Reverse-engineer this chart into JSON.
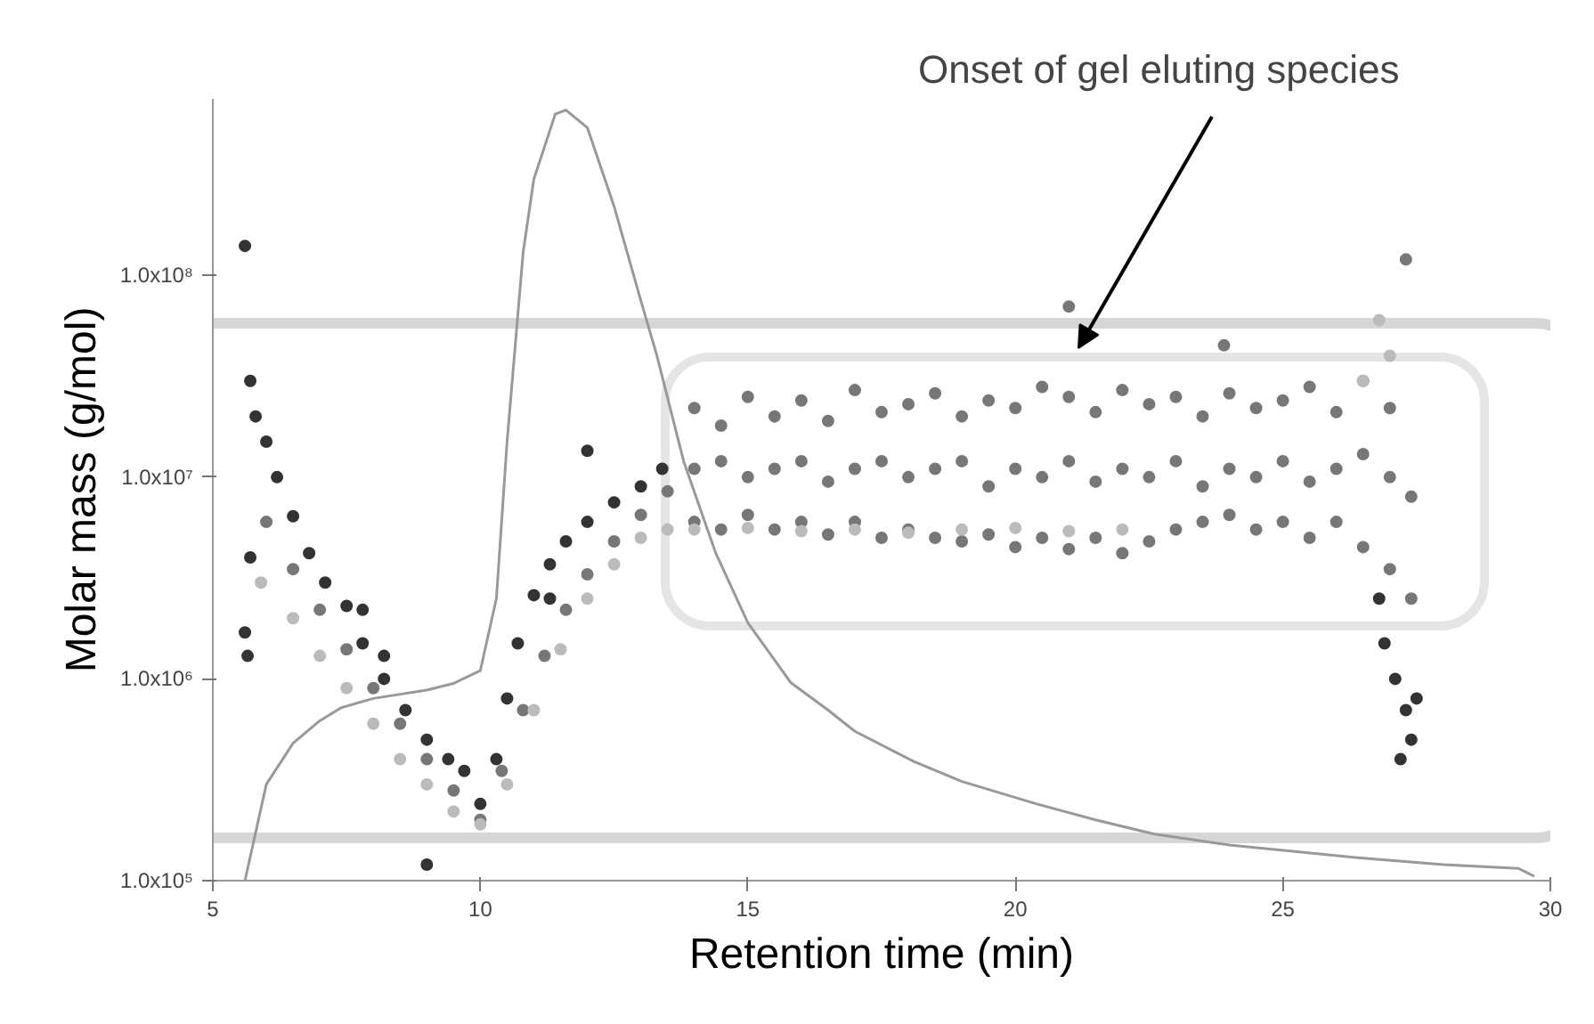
{
  "chart_data": {
    "type": "scatter",
    "xlabel": "Retention time (min)",
    "ylabel": "Molar mass (g/mol)",
    "log": "y",
    "xlim": [
      5,
      30
    ],
    "ylim": [
      100000,
      750000000
    ],
    "xticks": [
      5,
      10,
      15,
      20,
      25,
      30
    ],
    "yticks": [
      {
        "value": 100000,
        "label": "1.0x10⁵"
      },
      {
        "value": 1000000,
        "label": "1.0x10⁶"
      },
      {
        "value": 10000000,
        "label": "1.0x10⁷"
      },
      {
        "value": 100000000,
        "label": "1.0x10⁸"
      }
    ],
    "grid": false,
    "marker": "circle",
    "annotations": [
      "Onset of gel eluting species"
    ],
    "series": [
      {
        "color": "#333333",
        "x": [
          5.6,
          5.7,
          5.8,
          6.0,
          6.2,
          6.5,
          6.8,
          7.1,
          7.5,
          7.8,
          8.2,
          8.6,
          9.0,
          9.4,
          9.7,
          10.0,
          5.7,
          5.6,
          5.65,
          9.0,
          10.3,
          10.5,
          10.7,
          11.0,
          11.3,
          11.6,
          12.0,
          12.5,
          13.0,
          13.4,
          12.0,
          11.3,
          8.2,
          7.8,
          26.9,
          27.1,
          27.3,
          27.4,
          27.2,
          27.5,
          26.8
        ],
        "values": [
          140000000,
          30000000,
          20000000,
          15000000,
          10000000,
          6400000,
          4200000,
          3000000,
          2300000,
          1500000,
          1000000,
          700000,
          500000,
          400000,
          350000,
          240000,
          4000000,
          1700000,
          1300000,
          120000,
          400000,
          800000,
          1500000,
          2600000,
          3700000,
          4800000,
          6000000,
          7500000,
          9000000,
          11000000,
          13500000,
          2500000,
          1300000,
          2200000,
          1500000,
          1000000,
          700000,
          500000,
          400000,
          800000,
          2500000
        ]
      },
      {
        "color": "#777777",
        "x": [
          6.0,
          6.5,
          7.0,
          7.5,
          8.0,
          8.5,
          9.0,
          9.5,
          10.0,
          10.4,
          10.8,
          11.2,
          11.6,
          12.0,
          12.5,
          13.0,
          13.5,
          14.0,
          14.0,
          14.0,
          14.5,
          14.5,
          14.5,
          15.0,
          15.0,
          15.0,
          15.5,
          15.5,
          15.5,
          16.0,
          16.0,
          16.0,
          16.5,
          16.5,
          16.5,
          17.0,
          17.0,
          17.0,
          17.5,
          17.5,
          17.5,
          18.0,
          18.0,
          18.0,
          18.5,
          18.5,
          18.5,
          19.0,
          19.0,
          19.0,
          19.5,
          19.5,
          19.5,
          20.0,
          20.0,
          20.0,
          20.5,
          20.5,
          20.5,
          21.0,
          21.0,
          21.0,
          21.5,
          21.5,
          21.5,
          22.0,
          22.0,
          22.0,
          22.5,
          22.5,
          22.5,
          23.0,
          23.0,
          23.0,
          23.5,
          23.5,
          23.5,
          24.0,
          24.0,
          24.0,
          24.5,
          24.5,
          24.5,
          25.0,
          25.0,
          25.0,
          25.5,
          25.5,
          25.5,
          26.0,
          26.0,
          26.0,
          26.5,
          26.5,
          26.5,
          27.0,
          27.0,
          27.0,
          27.4,
          27.4,
          21.0,
          23.9,
          27.3
        ],
        "values": [
          6000000,
          3500000,
          2200000,
          1400000,
          900000,
          600000,
          400000,
          280000,
          200000,
          350000,
          700000,
          1300000,
          2200000,
          3300000,
          4800000,
          6500000,
          8500000,
          11000000,
          22000000,
          6000000,
          12000000,
          18000000,
          5500000,
          10000000,
          25000000,
          6500000,
          11000000,
          20000000,
          5500000,
          12000000,
          24000000,
          6000000,
          9500000,
          19000000,
          5200000,
          11000000,
          27000000,
          6000000,
          12000000,
          21000000,
          5000000,
          10000000,
          23000000,
          5500000,
          11000000,
          26000000,
          5000000,
          12000000,
          20000000,
          4800000,
          9000000,
          24000000,
          5200000,
          11000000,
          22000000,
          4500000,
          10000000,
          28000000,
          5000000,
          12000000,
          25000000,
          4400000,
          9500000,
          21000000,
          5000000,
          11000000,
          27000000,
          4200000,
          10000000,
          23000000,
          4800000,
          12000000,
          25000000,
          5500000,
          9000000,
          20000000,
          6000000,
          11000000,
          26000000,
          6500000,
          10000000,
          22000000,
          5500000,
          12000000,
          24000000,
          6000000,
          9500000,
          28000000,
          5000000,
          11000000,
          21000000,
          6000000,
          13000000,
          30000000,
          4500000,
          10000000,
          22000000,
          3500000,
          8000000,
          2500000,
          70000000,
          45000000,
          120000000
        ]
      },
      {
        "color": "#bbbbbb",
        "x": [
          5.9,
          6.5,
          7.0,
          7.5,
          8.0,
          8.5,
          9.0,
          9.5,
          10.0,
          10.5,
          11.0,
          11.5,
          12.0,
          12.5,
          13.0,
          13.5,
          14.0,
          15.0,
          16.0,
          17.0,
          18.0,
          19.0,
          20.0,
          21.0,
          22.0,
          26.5,
          27.0,
          26.8
        ],
        "values": [
          3000000,
          2000000,
          1300000,
          900000,
          600000,
          400000,
          300000,
          220000,
          190000,
          300000,
          700000,
          1400000,
          2500000,
          3700000,
          5000000,
          5500000,
          5500000,
          5600000,
          5400000,
          5500000,
          5300000,
          5500000,
          5600000,
          5400000,
          5500000,
          30000000,
          40000000,
          60000000
        ]
      },
      {
        "type": "line",
        "marker": "none",
        "color": "#999999",
        "x": [
          5.6,
          6.0,
          6.5,
          7.0,
          7.4,
          8.0,
          9.0,
          9.5,
          10.0,
          10.3,
          10.5,
          10.8,
          11.0,
          11.4,
          11.6,
          12.0,
          12.5,
          13.0,
          13.3,
          13.8,
          14.4,
          15.0,
          15.8,
          16.5,
          17.0,
          18.1,
          19.0,
          20.4,
          21.5,
          22.6,
          24.0,
          26.4,
          28.0,
          29.4,
          29.7
        ],
        "values": [
          100000,
          300000,
          480000,
          620000,
          720000,
          800000,
          880000,
          950000,
          1100000,
          2500000,
          15000000,
          130000000,
          300000000,
          630000000,
          660000000,
          540000000,
          220000000,
          75000000,
          40000000,
          12000000,
          4200000,
          1900000,
          960000,
          700000,
          550000,
          390000,
          310000,
          240000,
          200000,
          170000,
          150000,
          130000,
          120000,
          115000,
          105000
        ]
      }
    ]
  }
}
